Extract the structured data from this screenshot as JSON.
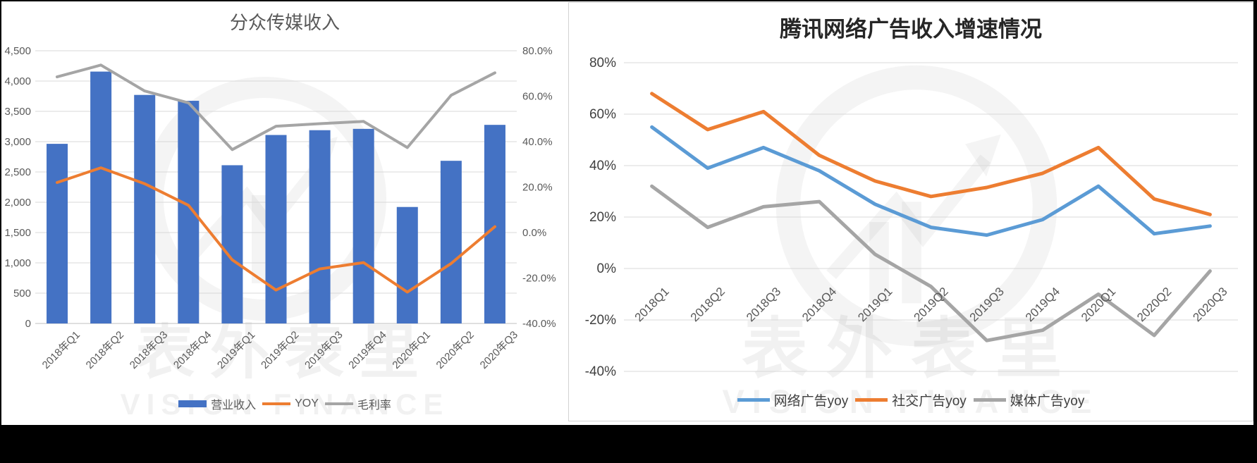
{
  "watermark": {
    "line1": "表外表里",
    "line2": "VISION FINANCE"
  },
  "colors": {
    "bar_blue": "#4472C4",
    "line_blue": "#5B9BD5",
    "orange": "#ED7D31",
    "gray": "#A5A5A5",
    "gridline": "#D9D9D9",
    "axis_line": "#BFBFBF",
    "axis_text": "#595959",
    "right_axis_text": "#404040",
    "title_left_color": "#595959",
    "title_right_color": "#262626"
  },
  "chart_data": [
    {
      "type": "bar",
      "combo": "bar+line",
      "title": "分众传媒收入",
      "categories": [
        "2018年Q1",
        "2018年Q2",
        "2018年Q3",
        "2018年Q4",
        "2019年Q1",
        "2019年Q2",
        "2019年Q3",
        "2019年Q4",
        "2020年Q1",
        "2020年Q2",
        "2020年Q3"
      ],
      "series": [
        {
          "name": "营业收入",
          "chart": "bar",
          "axis": "left",
          "color": "#4472C4",
          "values": [
            2964,
            4156,
            3771,
            3674,
            2611,
            3110,
            3189,
            3211,
            1922,
            2684,
            3277
          ]
        },
        {
          "name": "YOY",
          "chart": "line",
          "axis": "right",
          "color": "#ED7D31",
          "values": [
            22,
            28.5,
            21.5,
            12,
            -12,
            -25.3,
            -16,
            -13.2,
            -26.2,
            -13.6,
            2.6
          ]
        },
        {
          "name": "毛利率",
          "chart": "line",
          "axis": "right",
          "color": "#A5A5A5",
          "values": [
            68.5,
            73.7,
            62.3,
            57.1,
            36.5,
            46.8,
            47.9,
            48.9,
            37.4,
            60.4,
            70.3
          ]
        }
      ],
      "left_axis": {
        "min": 0,
        "max": 4500,
        "step": 500,
        "tick_labels": [
          "0",
          "500",
          "1,000",
          "1,500",
          "2,000",
          "2,500",
          "3,000",
          "3,500",
          "4,000",
          "4,500"
        ]
      },
      "right_axis": {
        "min": -40,
        "max": 80,
        "step": 20,
        "tick_labels": [
          "-40.0%",
          "-20.0%",
          "0.0%",
          "20.0%",
          "40.0%",
          "60.0%",
          "80.0%"
        ]
      },
      "grid": true,
      "legend_position": "bottom"
    },
    {
      "type": "line",
      "title": "腾讯网络广告收入增速情况",
      "categories": [
        "2018Q1",
        "2018Q2",
        "2018Q3",
        "2018Q4",
        "2019Q1",
        "2019Q2",
        "2019Q3",
        "2019Q4",
        "2020Q1",
        "2020Q2",
        "2020Q3"
      ],
      "series": [
        {
          "name": "网络广告yoy",
          "color": "#5B9BD5",
          "values": [
            55,
            39,
            47,
            38,
            25,
            16,
            13,
            19,
            32,
            13.5,
            16.5
          ]
        },
        {
          "name": "社交广告yoy",
          "color": "#ED7D31",
          "values": [
            68,
            54,
            61,
            44,
            34,
            28,
            31.5,
            37,
            47,
            27,
            21
          ]
        },
        {
          "name": "媒体广告yoy",
          "color": "#A5A5A5",
          "values": [
            32,
            16,
            24,
            26,
            5.5,
            -7,
            -28,
            -24,
            -10,
            -26,
            -1
          ]
        }
      ],
      "y_axis": {
        "min": -40,
        "max": 80,
        "step": 20,
        "tick_labels": [
          "-40%",
          "-20%",
          "0%",
          "20%",
          "40%",
          "60%",
          "80%"
        ]
      },
      "grid": true,
      "legend_position": "bottom"
    }
  ]
}
